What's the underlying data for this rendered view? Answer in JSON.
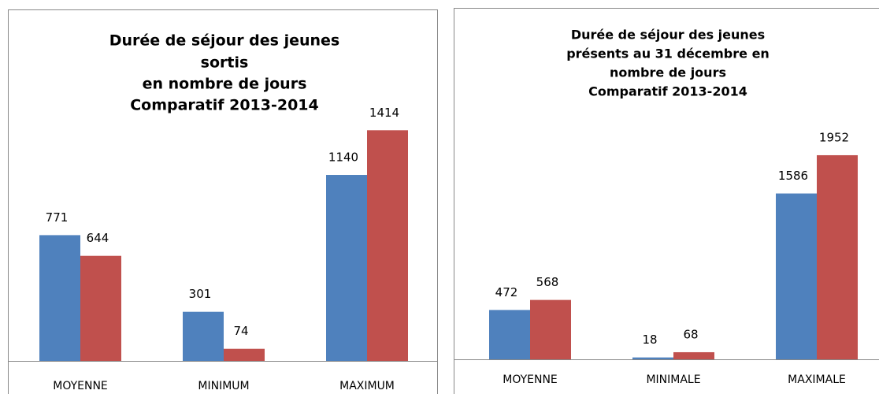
{
  "chart_data": [
    {
      "type": "bar",
      "title": [
        "Durée de séjour des jeunes",
        "sortis",
        "en nombre de jours",
        "Comparatif 2013-2014"
      ],
      "categories": [
        "MOYENNE",
        "MINIMUM",
        "MAXIMUM"
      ],
      "series": [
        {
          "color": "#4f81bd",
          "values": [
            771,
            301,
            1140
          ]
        },
        {
          "color": "#c0504d",
          "values": [
            644,
            74,
            1414
          ]
        }
      ]
    },
    {
      "type": "bar",
      "title": [
        "Durée de séjour des jeunes",
        "présents au 31 décembre en",
        "nombre de jours",
        "Comparatif 2013-2014"
      ],
      "categories": [
        "MOYENNE",
        "MINIMALE",
        "MAXIMALE"
      ],
      "series": [
        {
          "color": "#4f81bd",
          "values": [
            472,
            18,
            1586
          ]
        },
        {
          "color": "#c0504d",
          "values": [
            568,
            68,
            1952
          ]
        }
      ]
    }
  ]
}
